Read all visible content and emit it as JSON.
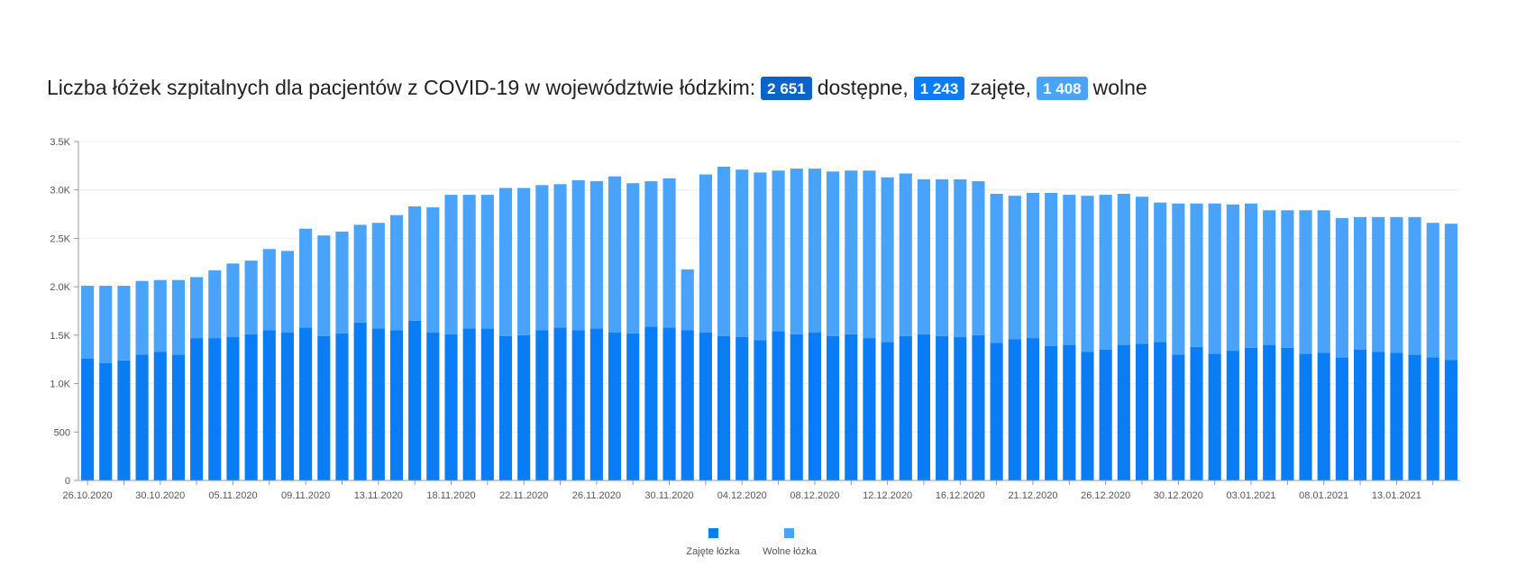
{
  "header": {
    "title_prefix": "Liczba łóżek szpitalnych dla pacjentów z COVID-19 w województwie łódzkim:",
    "available_value": "2 651",
    "available_label": "dostępne,",
    "occupied_value": "1 243",
    "occupied_label": "zajęte,",
    "free_value": "1 408",
    "free_label": "wolne"
  },
  "colors": {
    "occupied": "#0b7df4",
    "free": "#4aa3fb",
    "badge_total": "#0a63c9"
  },
  "chart_data": {
    "type": "bar",
    "stacked": true,
    "title": "",
    "xlabel": "",
    "ylabel": "",
    "ylim": [
      0,
      3500
    ],
    "y_ticks": [
      "0",
      "500",
      "1.0K",
      "1.5K",
      "2.0K",
      "2.5K",
      "3.0K",
      "3.5K"
    ],
    "x_tick_labels": [
      "26.10.2020",
      "30.10.2020",
      "05.11.2020",
      "09.11.2020",
      "13.11.2020",
      "18.11.2020",
      "22.11.2020",
      "26.11.2020",
      "30.11.2020",
      "04.12.2020",
      "08.12.2020",
      "12.12.2020",
      "16.12.2020",
      "21.12.2020",
      "26.12.2020",
      "30.12.2020",
      "03.01.2021",
      "08.01.2021",
      "13.01.2021"
    ],
    "x_tick_label_indices": [
      0,
      4,
      8,
      12,
      16,
      20,
      24,
      28,
      32,
      36,
      40,
      44,
      48,
      52,
      56,
      60,
      64,
      68,
      72
    ],
    "legend_position": "bottom-center",
    "series": [
      {
        "name": "Zajęte łózka",
        "values": [
          1260,
          1210,
          1240,
          1300,
          1330,
          1300,
          1470,
          1470,
          1480,
          1510,
          1550,
          1530,
          1580,
          1490,
          1520,
          1630,
          1570,
          1550,
          1650,
          1530,
          1510,
          1570,
          1570,
          1490,
          1500,
          1550,
          1580,
          1550,
          1570,
          1530,
          1520,
          1590,
          1580,
          1550,
          1530,
          1490,
          1480,
          1450,
          1540,
          1510,
          1530,
          1490,
          1510,
          1470,
          1430,
          1490,
          1510,
          1490,
          1480,
          1500,
          1420,
          1460,
          1470,
          1390,
          1400,
          1330,
          1350,
          1400,
          1410,
          1430,
          1300,
          1380,
          1310,
          1340,
          1370,
          1400,
          1370,
          1310,
          1320,
          1270,
          1350,
          1330,
          1320,
          1300,
          1270,
          1243
        ]
      },
      {
        "name": "Wolne łózka",
        "values": [
          750,
          800,
          770,
          760,
          740,
          770,
          630,
          700,
          760,
          760,
          840,
          840,
          1020,
          1040,
          1050,
          1010,
          1090,
          1190,
          1180,
          1290,
          1440,
          1380,
          1380,
          1530,
          1520,
          1500,
          1480,
          1550,
          1520,
          1610,
          1550,
          1500,
          1540,
          630,
          1630,
          1750,
          1730,
          1730,
          1660,
          1710,
          1690,
          1700,
          1690,
          1730,
          1700,
          1680,
          1600,
          1620,
          1630,
          1590,
          1540,
          1480,
          1500,
          1580,
          1550,
          1610,
          1600,
          1560,
          1520,
          1440,
          1560,
          1480,
          1550,
          1510,
          1490,
          1390,
          1420,
          1480,
          1470,
          1440,
          1370,
          1390,
          1400,
          1420,
          1390,
          1408
        ]
      }
    ]
  },
  "legend": {
    "occupied_label": "Zajęte łózka",
    "free_label": "Wolne łózka"
  }
}
